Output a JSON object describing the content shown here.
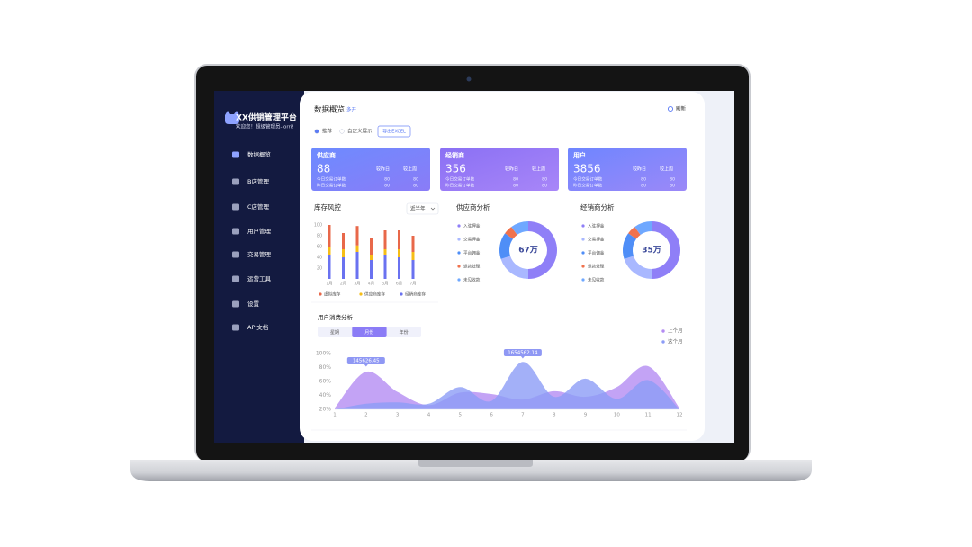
{
  "sidebar": {
    "title": "XX供销管理平台",
    "welcome": "欢迎您！超级管理员-lorri!",
    "menu": [
      "数据概览",
      "B店管理",
      "C店管理",
      "用户管理",
      "交易管理",
      "运营工具",
      "设置",
      "API文档"
    ]
  },
  "header": {
    "title": "数据概览",
    "tag": "多开",
    "refresh": "刷新"
  },
  "toolbar": {
    "options": [
      "推荐",
      "自定义展示"
    ],
    "export": "导出EXCEL"
  },
  "cards": [
    {
      "name": "供应商",
      "value": 88,
      "compare": [
        "较昨日",
        "较上周"
      ],
      "rows": [
        {
          "label": "今日交易订单数",
          "values": [
            80,
            80
          ]
        },
        {
          "label": "昨日交易订单数",
          "values": [
            80,
            80
          ]
        }
      ]
    },
    {
      "name": "经销商",
      "value": 356,
      "compare": [
        "较昨日",
        "较上周"
      ],
      "rows": [
        {
          "label": "今日交易订单数",
          "values": [
            80,
            80
          ]
        },
        {
          "label": "昨日交易订单数",
          "values": [
            80,
            80
          ]
        }
      ]
    },
    {
      "name": "用户",
      "value": 3856,
      "compare": [
        "较昨日",
        "较上周"
      ],
      "rows": [
        {
          "label": "今日交易订单数",
          "values": [
            80,
            80
          ]
        },
        {
          "label": "昨日交易订单数",
          "values": [
            80,
            80
          ]
        }
      ]
    }
  ],
  "chart_data": [
    {
      "type": "bar",
      "title": "库存风控",
      "filter": "近半年",
      "stacked": true,
      "categories": [
        "1月",
        "2月",
        "3月",
        "4月",
        "5月",
        "6月",
        "7月"
      ],
      "series": [
        {
          "name": "虚拟库存",
          "color": "#e8684a",
          "values": [
            40,
            30,
            36,
            30,
            35,
            35,
            30
          ]
        },
        {
          "name": "供应商库存",
          "color": "#f6bd16",
          "values": [
            15,
            15,
            12,
            10,
            10,
            15,
            15
          ]
        },
        {
          "name": "经销商库存",
          "color": "#6a72f0",
          "values": [
            45,
            40,
            50,
            35,
            45,
            40,
            35
          ]
        }
      ],
      "ylim": [
        0,
        100
      ],
      "yticks": [
        20,
        40,
        60,
        80,
        100
      ]
    },
    {
      "type": "pie",
      "title": "供应商分析",
      "center_label": "67万",
      "categories": [
        "入驻押金",
        "交易押金",
        "平台佣金",
        "退款处理",
        "未见收款"
      ],
      "values": [
        50,
        20,
        15,
        5,
        10
      ],
      "colors": [
        "#8f7ff7",
        "#a9b8ff",
        "#4f8ef7",
        "#f0724d",
        "#6fa8ff"
      ]
    },
    {
      "type": "pie",
      "title": "经销商分析",
      "center_label": "35万",
      "categories": [
        "入驻押金",
        "交易押金",
        "平台佣金",
        "退款处理",
        "未见收款"
      ],
      "values": [
        50,
        20,
        15,
        5,
        10
      ],
      "colors": [
        "#8f7ff7",
        "#a9b8ff",
        "#4f8ef7",
        "#f0724d",
        "#6fa8ff"
      ]
    },
    {
      "type": "area",
      "title": "用户消费分析",
      "tabs": [
        "星期",
        "月份",
        "年份"
      ],
      "active_tab": 1,
      "x": [
        1,
        2,
        3,
        4,
        5,
        6,
        7,
        8,
        9,
        10,
        11,
        12
      ],
      "xlim": [
        1,
        12
      ],
      "xticks": [
        1,
        2,
        3,
        4,
        5,
        6,
        7,
        8,
        9,
        10,
        11,
        12
      ],
      "series": [
        {
          "name": "上个月",
          "color": "#b48cf2",
          "values": [
            22,
            74,
            45,
            26,
            44,
            42,
            34,
            46,
            38,
            52,
            82,
            22
          ]
        },
        {
          "name": "这个月",
          "color": "#8c9cf6",
          "values": [
            20,
            28,
            30,
            28,
            52,
            32,
            88,
            38,
            64,
            35,
            62,
            20
          ]
        }
      ],
      "ylim": [
        20,
        100
      ],
      "yticks": [
        {
          "value": 20,
          "label": "20%"
        },
        {
          "value": 40,
          "label": "40%"
        },
        {
          "value": 60,
          "label": "60%"
        },
        {
          "value": 80,
          "label": "80%"
        },
        {
          "value": 100,
          "label": "100%"
        }
      ],
      "annotations": [
        {
          "x": 2,
          "text": "145626.45"
        },
        {
          "x": 7,
          "text": "1654562.14"
        }
      ]
    }
  ]
}
